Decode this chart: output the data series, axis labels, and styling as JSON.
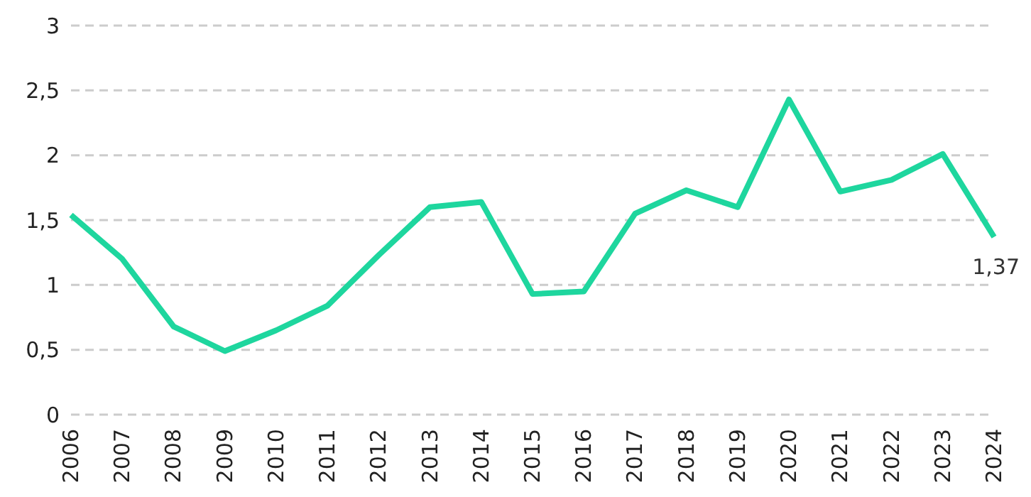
{
  "chart_data": {
    "type": "line",
    "categories": [
      "2006",
      "2007",
      "2008",
      "2009",
      "2010",
      "2011",
      "2012",
      "2013",
      "2014",
      "2015",
      "2016",
      "2017",
      "2018",
      "2019",
      "2020",
      "2021",
      "2022",
      "2023",
      "2024"
    ],
    "series": [
      {
        "color": "#1ed69e",
        "values": [
          1.54,
          1.2,
          0.68,
          0.49,
          0.65,
          0.84,
          1.23,
          1.6,
          1.64,
          0.93,
          0.95,
          1.55,
          1.73,
          1.6,
          2.43,
          1.72,
          1.81,
          2.01,
          1.37
        ],
        "value_labels": [
          null,
          null,
          null,
          null,
          null,
          null,
          null,
          null,
          null,
          null,
          null,
          null,
          null,
          null,
          null,
          null,
          null,
          null,
          "1,37"
        ]
      }
    ],
    "ylim": [
      0,
      3
    ],
    "yticks": [
      0,
      {
        "value": 0.5,
        "label": "0,5"
      },
      1,
      {
        "value": 1.5,
        "label": "1,5"
      },
      2,
      {
        "value": 2.5,
        "label": "2,5"
      },
      3
    ],
    "grid": "y",
    "legend": false,
    "marker": "none",
    "line_style": "solid"
  }
}
